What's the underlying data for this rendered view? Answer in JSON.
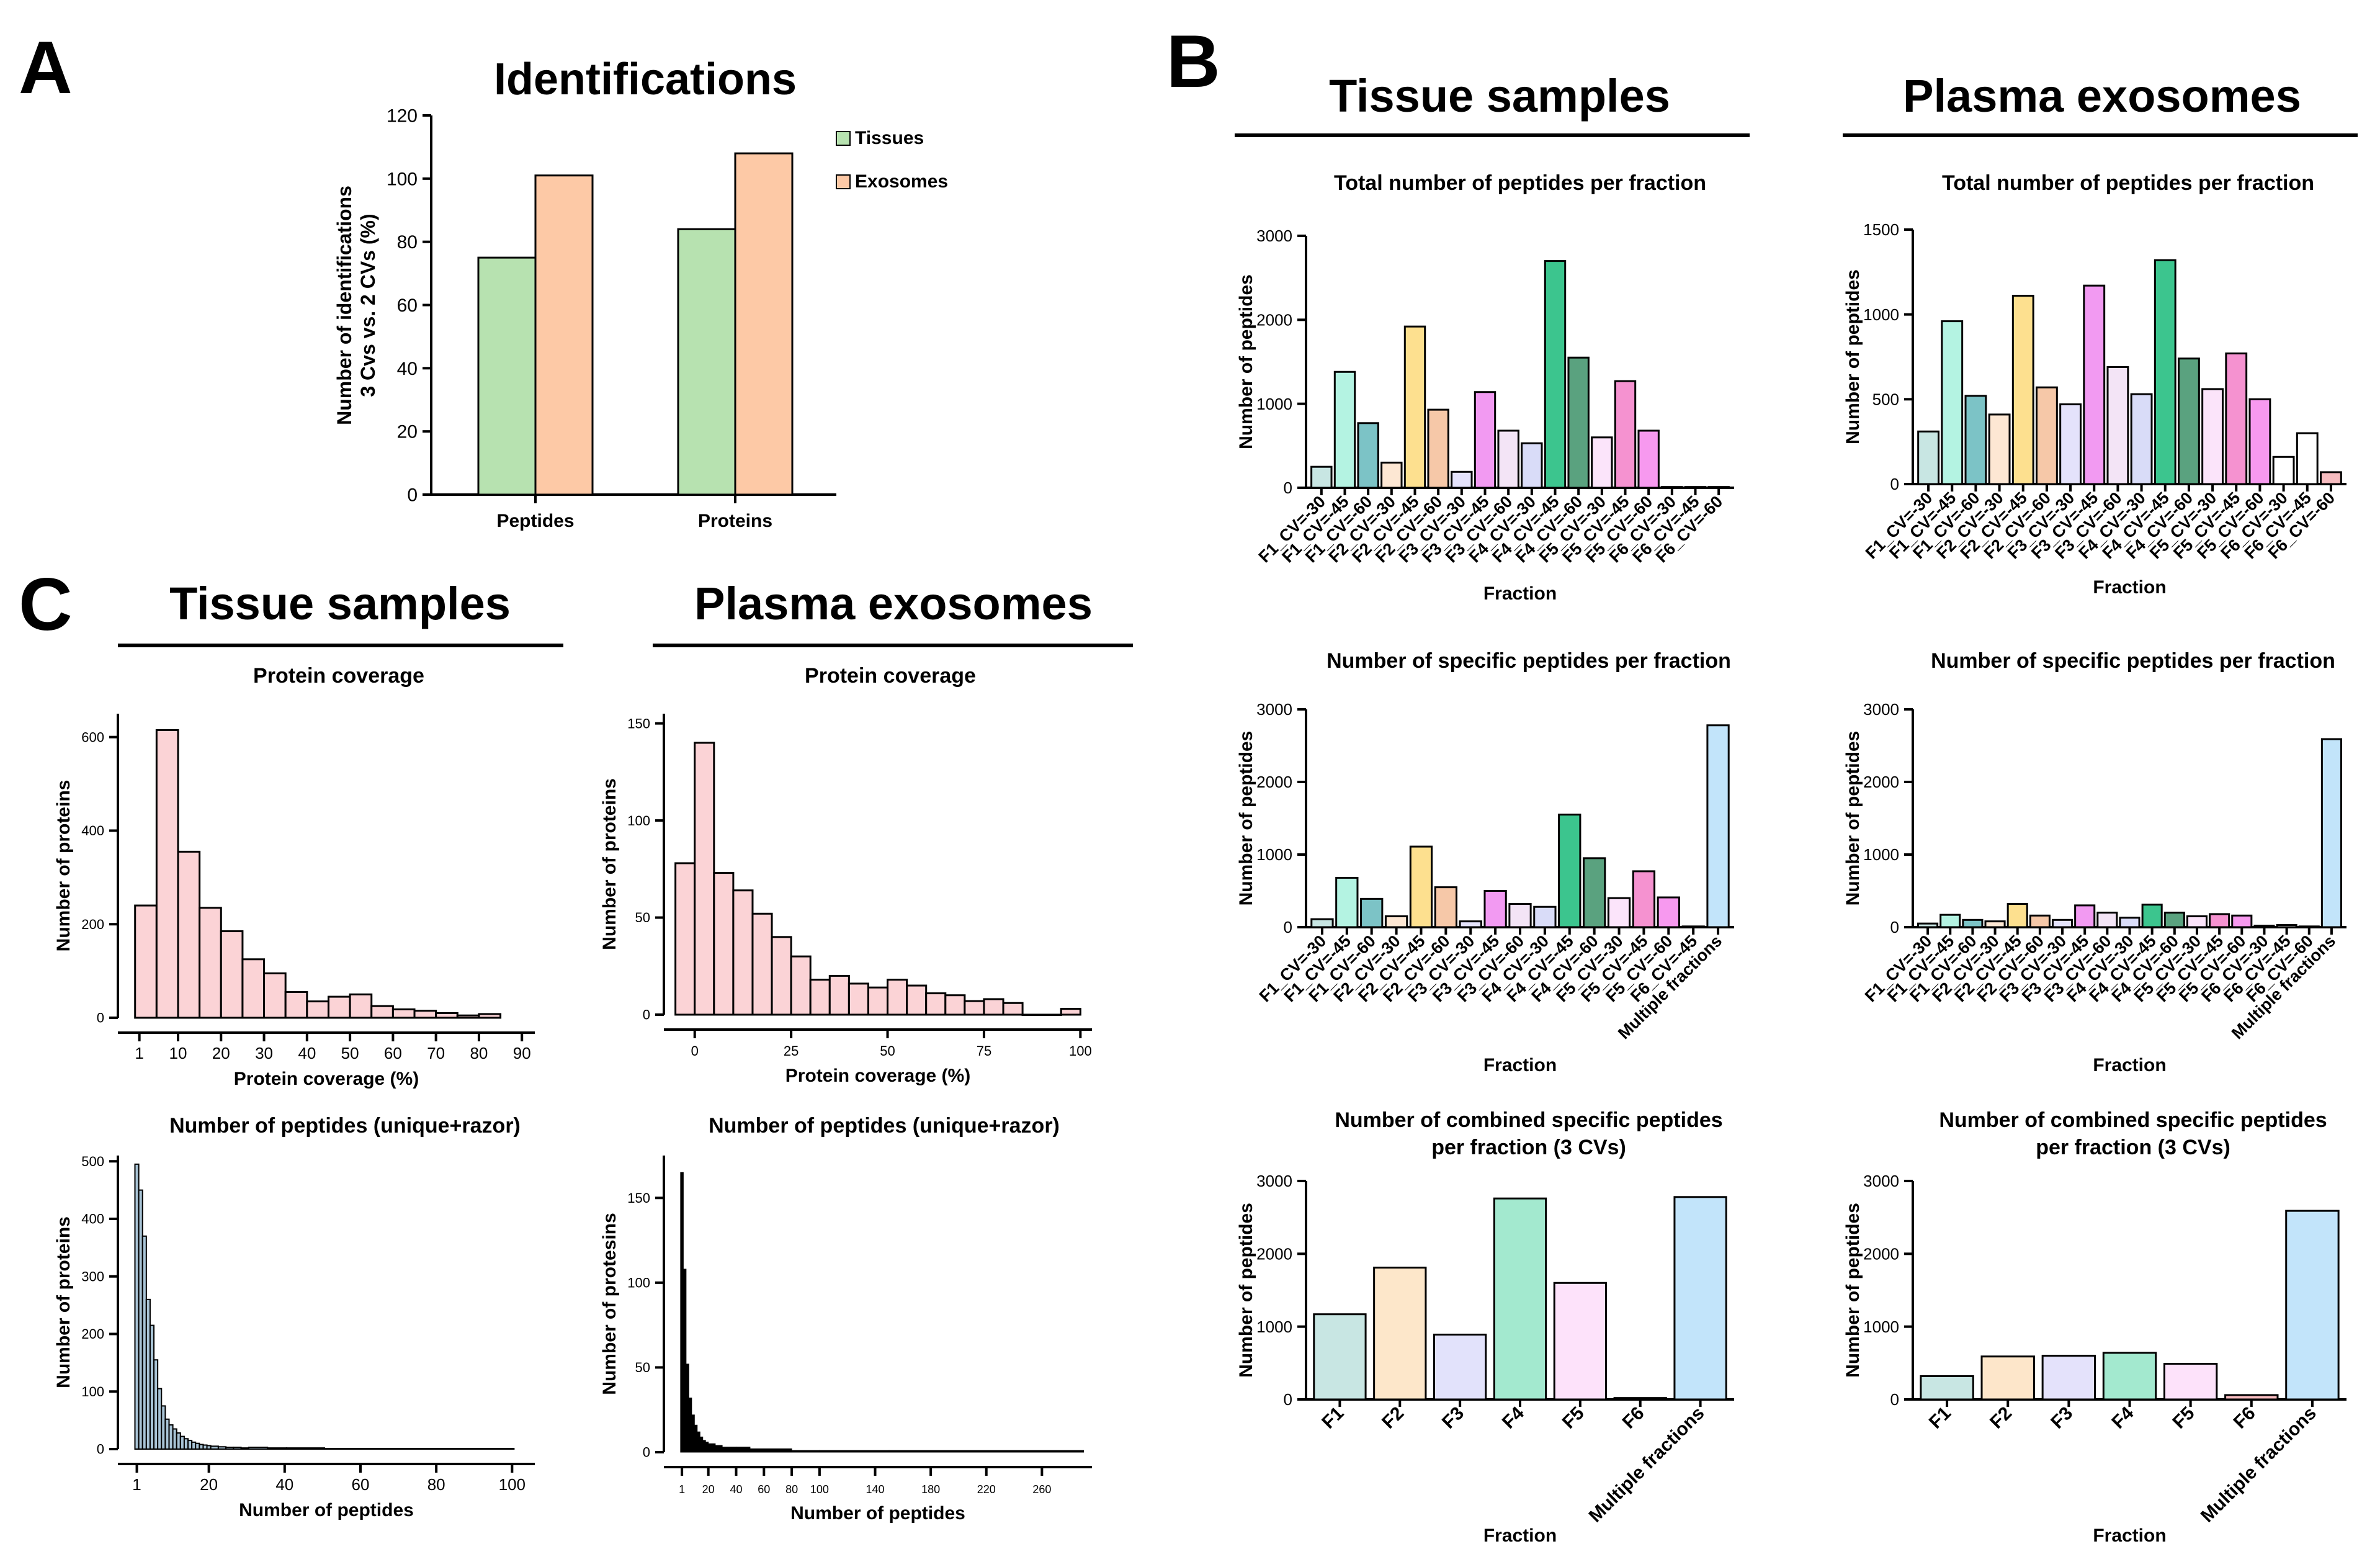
{
  "figure_labels": {
    "A": "A",
    "B": "B",
    "C": "C"
  },
  "section_headers": {
    "b_tissue": "Tissue samples",
    "b_plasma": "Plasma exosomes",
    "c_tissue": "Tissue samples",
    "c_plasma": "Plasma exosomes"
  },
  "colors": {
    "tissues": "#b7e2b0",
    "exosomes": "#fdc9a6",
    "hist_pink": "#fbd3d6",
    "hist_blue": "#a9c4d6",
    "hist_black": "#000000",
    "fractions": {
      "F1": [
        "#c8e6e3",
        "#b4f3e2",
        "#7cc3c6"
      ],
      "F2": [
        "#fde7d3",
        "#fde08f",
        "#f6c8a8"
      ],
      "F3": [
        "#e4e2fb",
        "#f29af2",
        "#f3e4f6"
      ],
      "F4": [
        "#d9dcf8",
        "#3cc58e",
        "#5aa27f"
      ],
      "F5": [
        "#fbe4fa",
        "#f592d0",
        "#f799ef"
      ],
      "F6": [
        "#ffffff",
        "#ffffff",
        "#f7bcc0"
      ],
      "Multiple": "#c2e4fa",
      "combined_tissue": [
        "#c8e6e3",
        "#fde7ca",
        "#e2e2fb",
        "#a3e9cf",
        "#fde2fa",
        "#ffffff",
        "#c2e4fa"
      ],
      "combined_plasma": [
        "#c8e6e3",
        "#fde6ca",
        "#e4e2fb",
        "#a3e9cf",
        "#fde2fa",
        "#f7bcc0",
        "#c2e4fa"
      ]
    }
  },
  "chart_data": [
    {
      "id": "A",
      "type": "bar",
      "title": "Identifications",
      "categories": [
        "Peptides",
        "Proteins"
      ],
      "series": [
        {
          "name": "Tissues",
          "values": [
            75,
            84
          ]
        },
        {
          "name": "Exosomes",
          "values": [
            101,
            108
          ]
        }
      ],
      "ylabel_lines": [
        "Number of identifications",
        "3 Cvs vs. 2 CVs (%)"
      ],
      "ylim": [
        0,
        120
      ],
      "yticks": [
        0,
        20,
        40,
        60,
        80,
        100,
        120
      ],
      "legend": "top-right"
    },
    {
      "id": "B_tissue_total",
      "type": "bar",
      "title": "Total number of peptides per fraction",
      "categories": [
        "F1_CV=-30",
        "F1_CV=-45",
        "F1_CV=-60",
        "F2_CV=-30",
        "F2_CV=-45",
        "F2_CV=-60",
        "F3_CV=-30",
        "F3_CV=-45",
        "F3_CV=-60",
        "F4_CV=-30",
        "F4_CV=-45",
        "F4_CV=-60",
        "F5_CV=-30",
        "F5_CV=-45",
        "F5_CV=-60",
        "F6_CV=-30",
        "F6_CV=-45",
        "F6_CV=-60"
      ],
      "values": [
        250,
        1380,
        770,
        300,
        1920,
        930,
        190,
        1140,
        680,
        530,
        2700,
        1550,
        600,
        1270,
        680,
        10,
        10,
        10
      ],
      "xlabel": "Fraction",
      "ylabel": "Number of peptides",
      "ylim": [
        0,
        3000
      ],
      "yticks": [
        0,
        1000,
        2000,
        3000
      ]
    },
    {
      "id": "B_plasma_total",
      "type": "bar",
      "title": "Total number of peptides per fraction",
      "categories": [
        "F1_CV=-30",
        "F1_CV=-45",
        "F1_CV=-60",
        "F2_CV=-30",
        "F2_CV=-45",
        "F2_CV=-60",
        "F3_CV=-30",
        "F3_CV=-45",
        "F3_CV=-60",
        "F4_CV=-30",
        "F4_CV=-45",
        "F4_CV=-60",
        "F5_CV=-30",
        "F5_CV=-45",
        "F5_CV=-60",
        "F6_CV=-30",
        "F6_CV=-45",
        "F6_CV=-60"
      ],
      "values": [
        310,
        960,
        520,
        410,
        1110,
        570,
        470,
        1170,
        690,
        530,
        1320,
        740,
        560,
        770,
        500,
        160,
        300,
        70
      ],
      "xlabel": "Fraction",
      "ylabel": "Number of peptides",
      "ylim": [
        0,
        1500
      ],
      "yticks": [
        0,
        500,
        1000,
        1500
      ]
    },
    {
      "id": "B_tissue_specific",
      "type": "bar",
      "title": "Number of specific peptides per fraction",
      "categories": [
        "F1_CV=-30",
        "F1_CV=-45",
        "F1_CV=-60",
        "F2_CV=-30",
        "F2_CV=-45",
        "F2_CV=-60",
        "F3_CV=-30",
        "F3_CV=-45",
        "F3_CV=-60",
        "F4_CV=-30",
        "F4_CV=-45",
        "F4_CV=-60",
        "F5_CV=-30",
        "F5_CV=-45",
        "F5_CV=-60",
        "F6_CV=-45",
        "Multiple fractions"
      ],
      "values": [
        110,
        680,
        390,
        150,
        1110,
        550,
        80,
        500,
        320,
        280,
        1550,
        950,
        400,
        770,
        410,
        10,
        2780
      ],
      "xlabel": "Fraction",
      "ylabel": "Number of peptides",
      "ylim": [
        0,
        3000
      ],
      "yticks": [
        0,
        1000,
        2000,
        3000
      ]
    },
    {
      "id": "B_plasma_specific",
      "type": "bar",
      "title": "Number of specific peptides per fraction",
      "categories": [
        "F1_CV=-30",
        "F1_CV=-45",
        "F1_CV=-60",
        "F2_CV=-30",
        "F2_CV=-45",
        "F2_CV=-60",
        "F3_CV=-30",
        "F3_CV=-45",
        "F3_CV=-60",
        "F4_CV=-30",
        "F4_CV=-45",
        "F4_CV=-60",
        "F5_CV=-30",
        "F5_CV=-45",
        "F5_CV=-60",
        "F6_CV=-30",
        "F6_CV=-45",
        "F6_CV=-60",
        "Multiple fractions"
      ],
      "values": [
        50,
        170,
        100,
        80,
        320,
        160,
        100,
        300,
        200,
        130,
        310,
        200,
        150,
        180,
        160,
        20,
        30,
        10,
        2590
      ],
      "xlabel": "Fraction",
      "ylabel": "Number of peptides",
      "ylim": [
        0,
        3000
      ],
      "yticks": [
        0,
        1000,
        2000,
        3000
      ]
    },
    {
      "id": "B_tissue_combined",
      "type": "bar",
      "title_lines": [
        "Number of combined specific peptides",
        "per fraction (3 CVs)"
      ],
      "categories": [
        "F1",
        "F2",
        "F3",
        "F4",
        "F5",
        "F6",
        "Multiple fractions"
      ],
      "values": [
        1170,
        1810,
        890,
        2760,
        1600,
        20,
        2780
      ],
      "xlabel": "Fraction",
      "ylabel": "Number of peptides",
      "ylim": [
        0,
        3000
      ],
      "yticks": [
        0,
        1000,
        2000,
        3000
      ]
    },
    {
      "id": "B_plasma_combined",
      "type": "bar",
      "title_lines": [
        "Number of combined specific peptides",
        "per fraction (3 CVs)"
      ],
      "categories": [
        "F1",
        "F2",
        "F3",
        "F4",
        "F5",
        "F6",
        "Multiple fractions"
      ],
      "values": [
        320,
        590,
        600,
        640,
        490,
        60,
        2590
      ],
      "xlabel": "Fraction",
      "ylabel": "Number of peptides",
      "ylim": [
        0,
        3000
      ],
      "yticks": [
        0,
        1000,
        2000,
        3000
      ]
    },
    {
      "id": "C_tissue_coverage",
      "type": "bar",
      "subtype": "histogram",
      "title": "Protein coverage",
      "bin_edges": [
        0,
        5,
        10,
        15,
        20,
        25,
        30,
        35,
        40,
        45,
        50,
        55,
        60,
        65,
        70,
        75,
        80,
        85
      ],
      "values": [
        240,
        615,
        355,
        235,
        185,
        125,
        95,
        55,
        35,
        45,
        50,
        25,
        18,
        15,
        10,
        5,
        8
      ],
      "xlabel": "Protein coverage (%)",
      "ylabel": "Number of proteins",
      "xlim": [
        -4,
        93
      ],
      "ylim": [
        0,
        650
      ],
      "xticks": [
        1,
        10,
        20,
        30,
        40,
        50,
        60,
        70,
        80,
        90
      ],
      "yticks": [
        0,
        200,
        400,
        600
      ]
    },
    {
      "id": "C_plasma_coverage",
      "type": "bar",
      "subtype": "histogram",
      "title": "Protein coverage",
      "bin_edges": [
        -5,
        0,
        5,
        10,
        15,
        20,
        25,
        30,
        35,
        40,
        45,
        50,
        55,
        60,
        65,
        70,
        75,
        80,
        85,
        90,
        95,
        100
      ],
      "values": [
        78,
        140,
        73,
        64,
        52,
        40,
        30,
        18,
        20,
        16,
        14,
        18,
        15,
        11,
        10,
        7,
        8,
        6,
        0,
        0,
        3
      ],
      "xlabel": "Protein coverage (%)",
      "ylabel": "Number of proteins",
      "xlim": [
        -8,
        103
      ],
      "ylim": [
        0,
        155
      ],
      "xticks": [
        0,
        25,
        50,
        75,
        100
      ],
      "yticks": [
        0,
        50,
        100,
        150
      ]
    },
    {
      "id": "C_tissue_peptides",
      "type": "bar",
      "subtype": "histogram",
      "title": "Number of peptides (unique+razor)",
      "bin_edges": [
        0.5,
        1.5,
        2.5,
        3.5,
        4.5,
        5.5,
        6.5,
        7.5,
        8.5,
        9.5,
        10.5,
        11.5,
        12.5,
        13.5,
        14.5,
        15.5,
        16.5,
        17.5,
        18.5,
        19.5,
        20.5,
        22.5,
        24.5,
        26.5,
        28.5,
        30.5,
        35.5,
        40.5,
        50.5,
        60.5,
        70.5,
        80.5,
        90.5,
        100.5
      ],
      "values": [
        495,
        450,
        370,
        260,
        215,
        155,
        105,
        75,
        52,
        42,
        35,
        28,
        22,
        18,
        15,
        12,
        10,
        8,
        7,
        6,
        5,
        4,
        3,
        3,
        2,
        3,
        2,
        2,
        1,
        1,
        1,
        1,
        1
      ],
      "xlabel": "Number of peptides",
      "ylabel": "Number of proteins",
      "xlim": [
        -4,
        106
      ],
      "ylim": [
        0,
        510
      ],
      "xticks": [
        1,
        20,
        40,
        60,
        80,
        100
      ],
      "yticks": [
        0,
        100,
        200,
        300,
        400,
        500
      ]
    },
    {
      "id": "C_plasma_peptides",
      "type": "bar",
      "subtype": "histogram",
      "title": "Number of peptides (unique+razor)",
      "bin_edges": [
        0,
        2,
        4,
        6,
        8,
        10,
        12,
        14,
        16,
        18,
        20,
        25,
        30,
        40,
        50,
        60,
        80,
        100,
        150,
        290
      ],
      "values": [
        165,
        108,
        52,
        32,
        22,
        16,
        12,
        9,
        7,
        6,
        5,
        4,
        3,
        3,
        2,
        2,
        1,
        1,
        1
      ],
      "xlabel": "Number of peptides",
      "ylabel": "Number of protesins",
      "xlim": [
        -12,
        296
      ],
      "ylim": [
        0,
        175
      ],
      "xticks": [
        1,
        20,
        40,
        60,
        80,
        100,
        140,
        180,
        220,
        260
      ],
      "yticks": [
        0,
        50,
        100,
        150
      ]
    }
  ]
}
